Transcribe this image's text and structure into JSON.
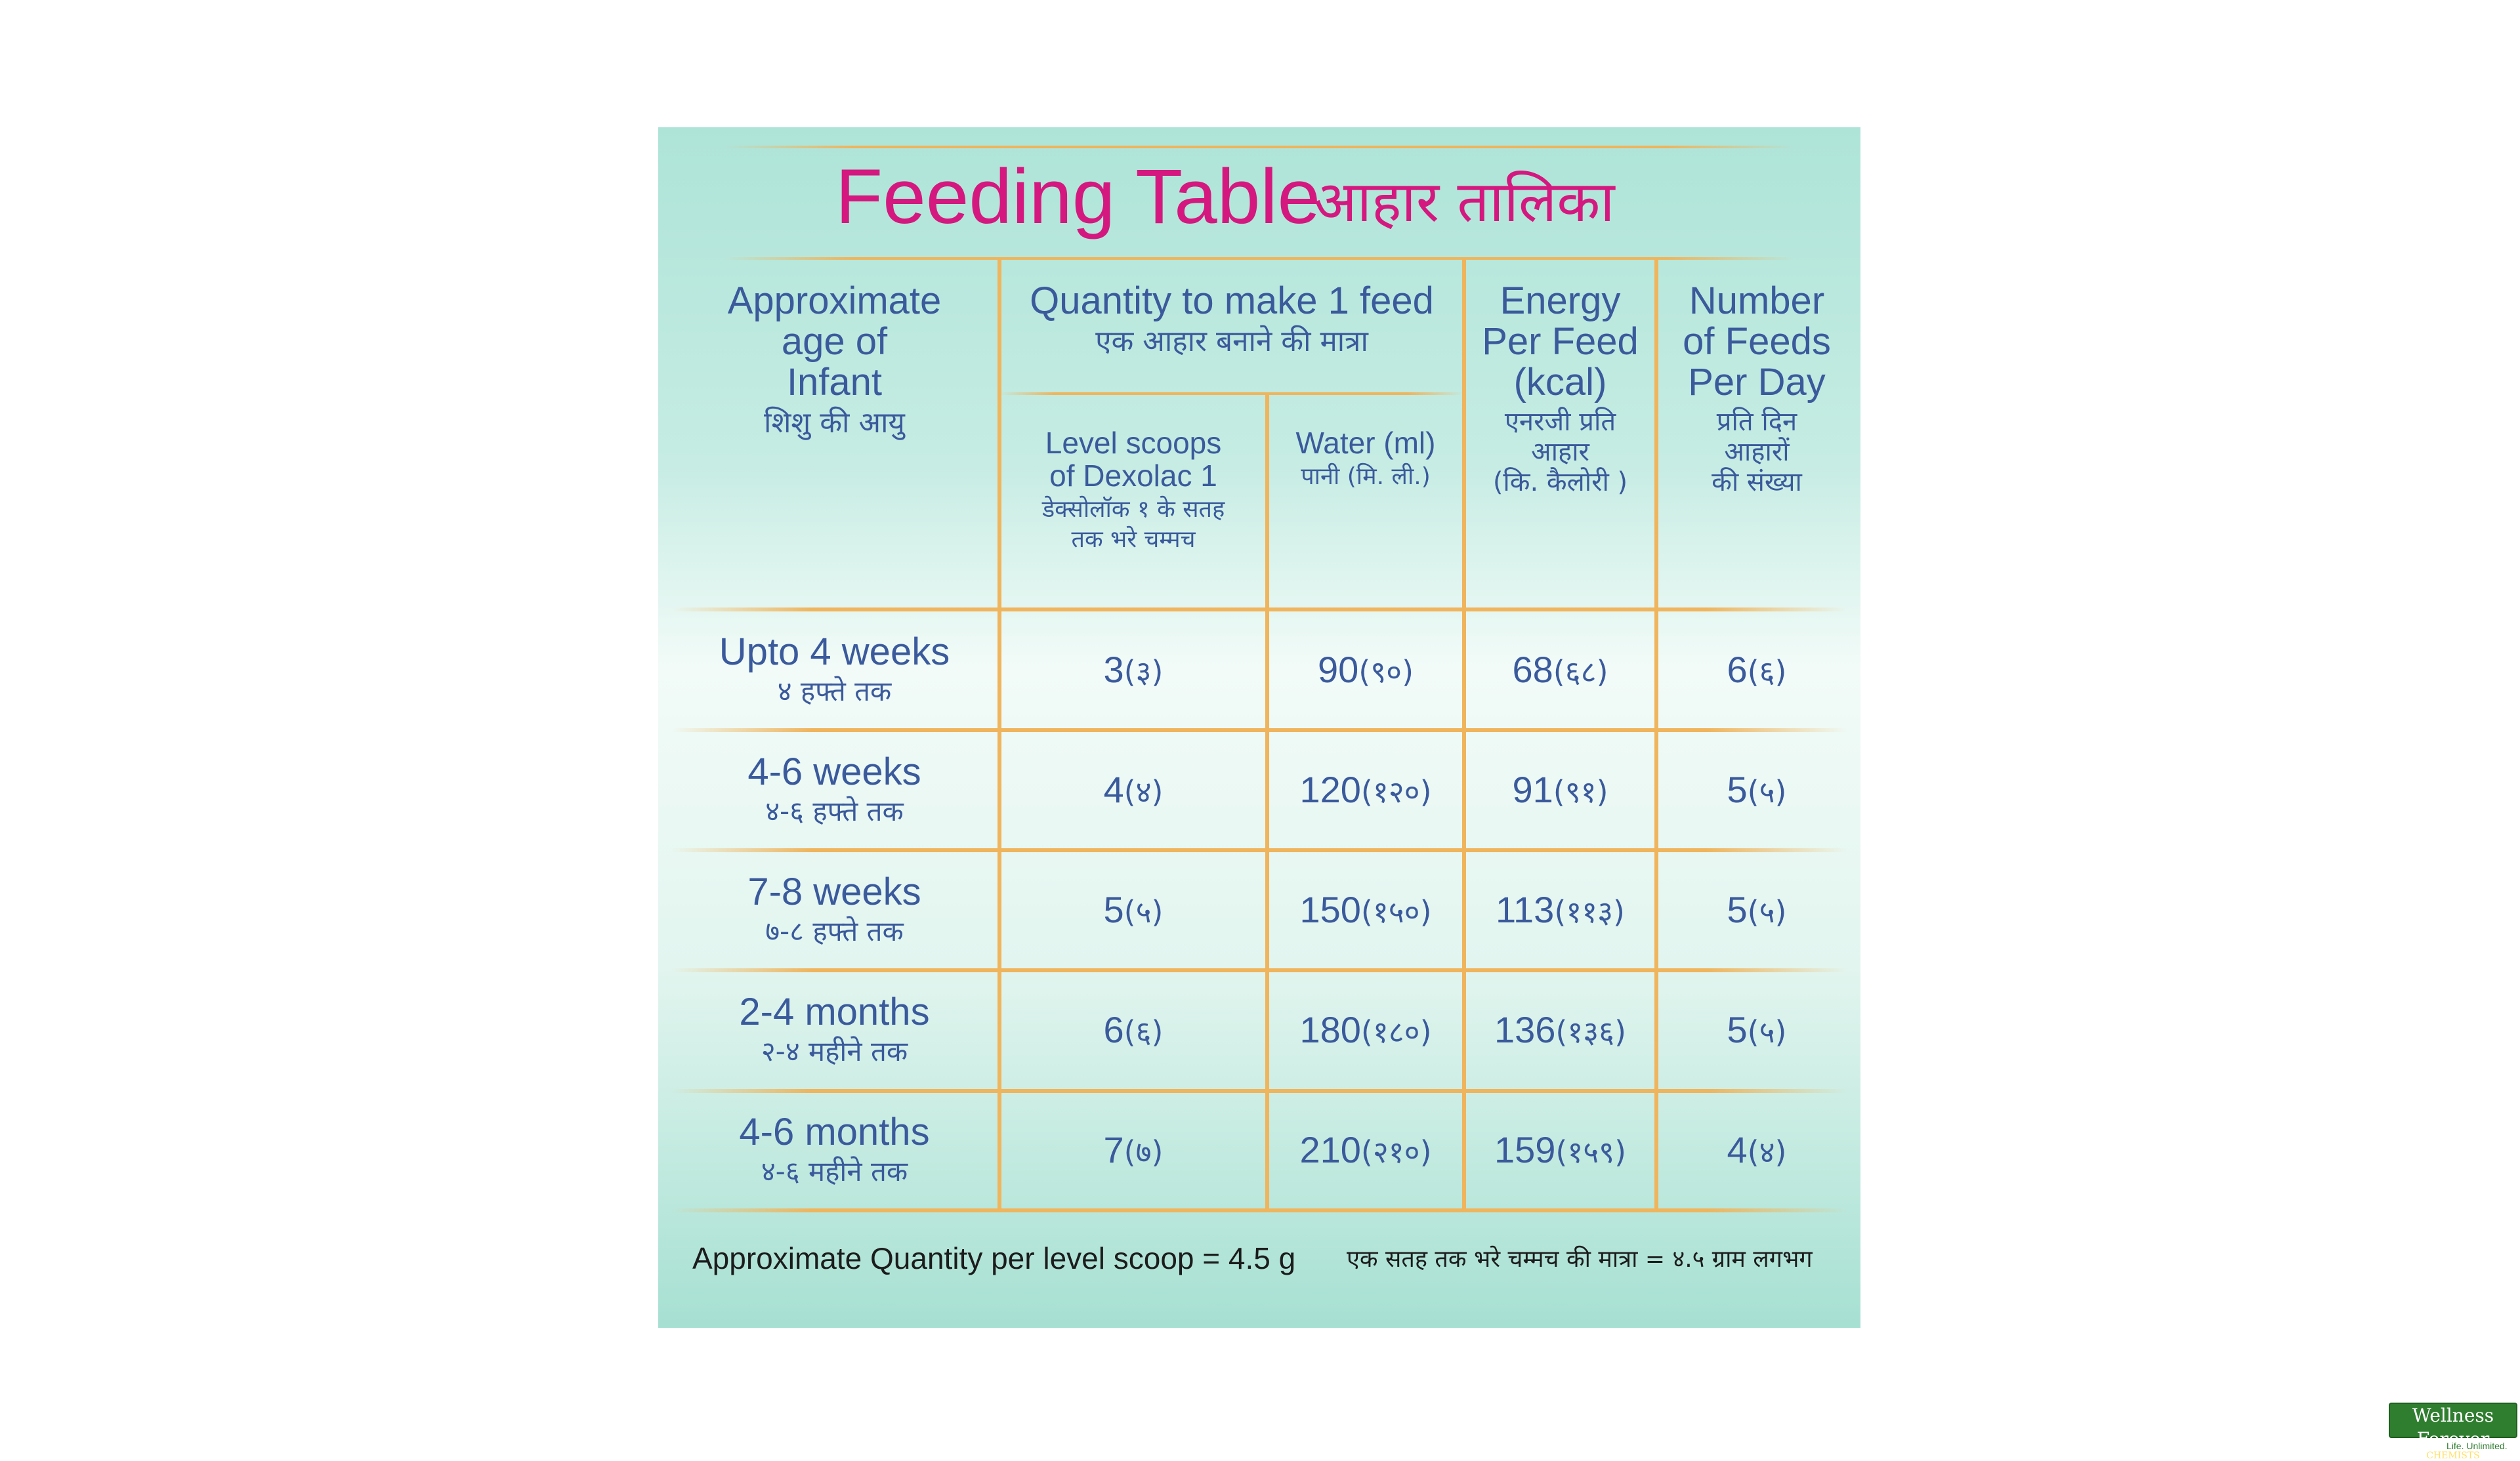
{
  "title": {
    "en": "Feeding Table",
    "hi": "आहार तालिका"
  },
  "headers": {
    "age": {
      "en_lines": [
        "Approximate",
        "age of",
        "Infant"
      ],
      "hi": "शिशु की आयु"
    },
    "quantity": {
      "en": "Quantity to make 1 feed",
      "hi": "एक आहार बनाने की मात्रा"
    },
    "scoops": {
      "en_lines": [
        "Level scoops",
        "of Dexolac 1"
      ],
      "hi_lines": [
        "डेक्सोलॉक १ के सतह",
        "तक भरे चम्मच"
      ]
    },
    "water": {
      "en": "Water (ml)",
      "hi": "पानी (मि. ली.)"
    },
    "energy": {
      "en_lines": [
        "Energy",
        "Per Feed",
        "(kcal)"
      ],
      "hi_lines": [
        "एनरजी प्रति",
        "आहार",
        "(कि. कैलोरी )"
      ]
    },
    "feeds": {
      "en_lines": [
        "Number",
        "of Feeds",
        "Per Day"
      ],
      "hi_lines": [
        "प्रति दिन",
        "आहारों",
        "की संख्या"
      ]
    }
  },
  "rows": [
    {
      "age_en": "Upto 4 weeks",
      "age_hi": "४ हफ्ते तक",
      "scoops": "3",
      "scoops_hi": "(३)",
      "water": "90",
      "water_hi": "(९०)",
      "energy": "68",
      "energy_hi": "(६८)",
      "feeds": "6",
      "feeds_hi": "(६)"
    },
    {
      "age_en": "4-6 weeks",
      "age_hi": "४-६ हफ्ते तक",
      "scoops": "4",
      "scoops_hi": "(४)",
      "water": "120",
      "water_hi": "(१२०)",
      "energy": "91",
      "energy_hi": "(९१)",
      "feeds": "5",
      "feeds_hi": "(५)"
    },
    {
      "age_en": "7-8 weeks",
      "age_hi": "७-८ हफ्ते तक",
      "scoops": "5",
      "scoops_hi": "(५)",
      "water": "150",
      "water_hi": "(१५०)",
      "energy": "113",
      "energy_hi": "(११३)",
      "feeds": "5",
      "feeds_hi": "(५)"
    },
    {
      "age_en": "2-4 months",
      "age_hi": "२-४ महीने तक",
      "scoops": "6",
      "scoops_hi": "(६)",
      "water": "180",
      "water_hi": "(१८०)",
      "energy": "136",
      "energy_hi": "(१३६)",
      "feeds": "5",
      "feeds_hi": "(५)"
    },
    {
      "age_en": "4-6 months",
      "age_hi": "४-६ महीने तक",
      "scoops": "7",
      "scoops_hi": "(७)",
      "water": "210",
      "water_hi": "(२१०)",
      "energy": "159",
      "energy_hi": "(१५९)",
      "feeds": "4",
      "feeds_hi": "(४)"
    }
  ],
  "footnote": {
    "en": "Approximate Quantity per level scoop = 4.5 g",
    "hi": "एक सतह तक भरे चम्मच की मात्रा = ४.५ ग्राम लगभग"
  },
  "logo": {
    "name": "Wellness Forever",
    "sub": "CHEMISTS",
    "tagline": "Life. Unlimited."
  },
  "colors": {
    "title": "#d4187f",
    "text": "#3a5a9c",
    "rule": "#efb45c",
    "panel_top": "#aee4d8",
    "panel_mid": "#f2fbf8"
  }
}
